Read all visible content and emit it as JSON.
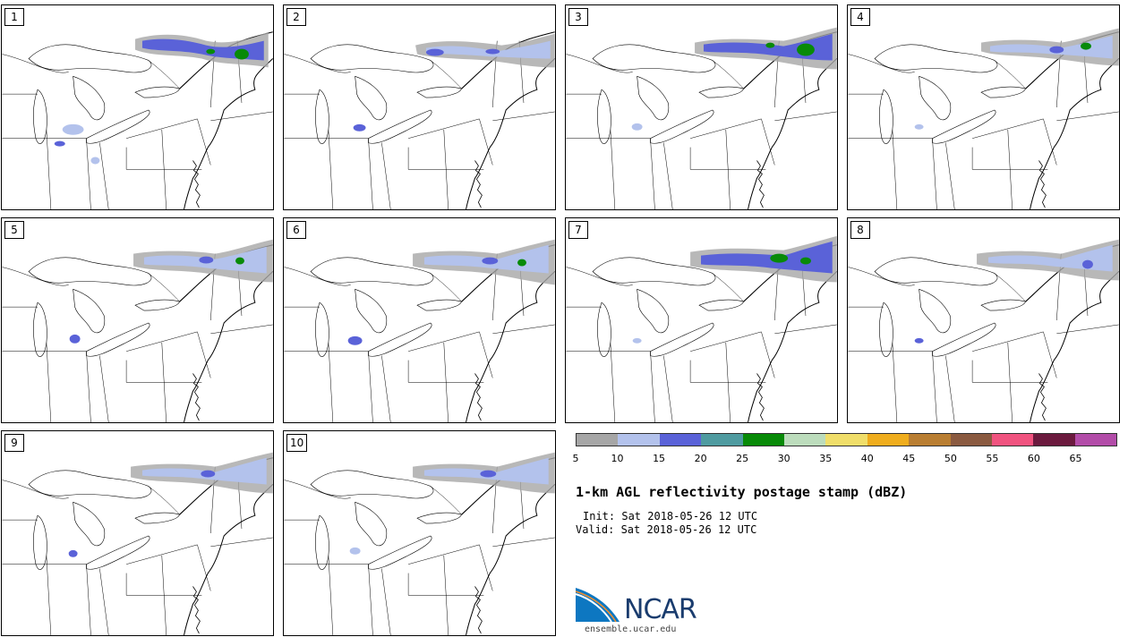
{
  "panels": [
    {
      "label": "1"
    },
    {
      "label": "2"
    },
    {
      "label": "3"
    },
    {
      "label": "4"
    },
    {
      "label": "5"
    },
    {
      "label": "6"
    },
    {
      "label": "7"
    },
    {
      "label": "8"
    },
    {
      "label": "9"
    },
    {
      "label": "10"
    }
  ],
  "colorbar": {
    "colors": [
      "#a6a6a6",
      "#b3c2ec",
      "#5a62d8",
      "#4f9ba0",
      "#088a08",
      "#bcdcbc",
      "#f0de6a",
      "#efad1e",
      "#b97e32",
      "#8a5a40",
      "#f0537f",
      "#6b1a3e",
      "#b24ca8"
    ],
    "ticks": [
      "5",
      "10",
      "15",
      "20",
      "25",
      "30",
      "35",
      "40",
      "45",
      "50",
      "55",
      "60",
      "65"
    ]
  },
  "title": "1-km AGL reflectivity postage stamp (dBZ)",
  "init": "Init: Sat 2018-05-26 12 UTC",
  "valid": "Valid: Sat 2018-05-26 12 UTC",
  "logo_text": "NCAR",
  "site": "ensemble.ucar.edu"
}
